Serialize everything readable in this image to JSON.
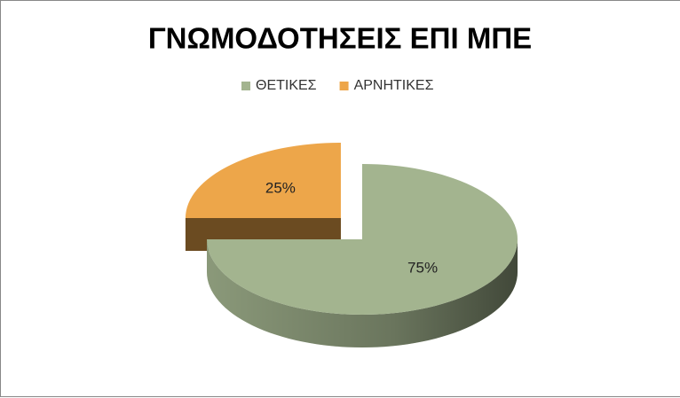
{
  "chart_data": {
    "type": "pie",
    "title": "ΓΝΩΜΟΔΟΤΗΣΕΙΣ ΕΠΙ ΜΠΕ",
    "categories": [
      "ΘΕΤΙΚΕΣ",
      "ΑΡΝΗΤΙΚΕΣ"
    ],
    "values": [
      75,
      25
    ],
    "value_labels": [
      "75%",
      "25%"
    ],
    "colors": [
      "#a3b48f",
      "#eda64a"
    ],
    "legend": "top"
  }
}
